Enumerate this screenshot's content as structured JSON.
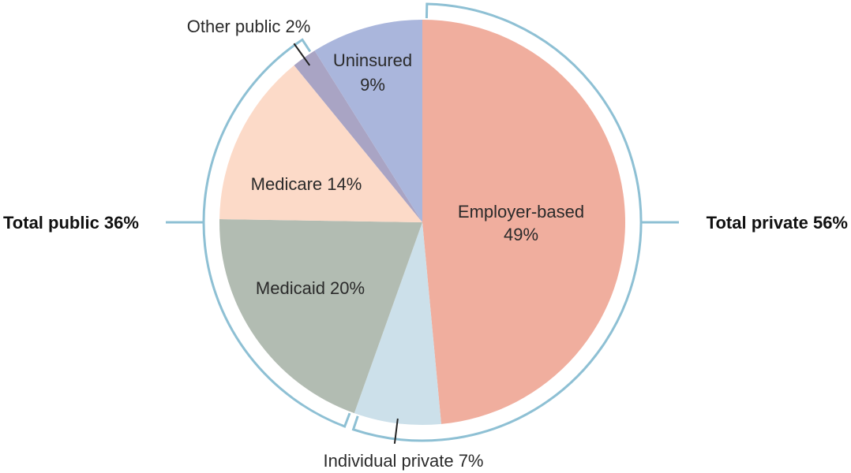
{
  "chart_data": {
    "type": "pie",
    "slices": [
      {
        "label": "Employer-based",
        "pct_text": "49%",
        "value": 49,
        "color": "#f0ae9e"
      },
      {
        "label": "Individual private 7%",
        "value": 7,
        "color": "#cce0ea"
      },
      {
        "label": "Medicaid 20%",
        "value": 20,
        "color": "#b2bcb2"
      },
      {
        "label": "Medicare 14%",
        "value": 14,
        "color": "#fcdac8"
      },
      {
        "label": "Other public 2%",
        "value": 2,
        "color": "#a9a4c4"
      },
      {
        "label": "Uninsured",
        "pct_text": "9%",
        "value": 9,
        "color": "#aab6dc"
      }
    ],
    "groups": [
      {
        "label": "Total private 56%",
        "value": 56
      },
      {
        "label": "Total public 36%",
        "value": 36
      }
    ],
    "bracket_color": "#8ec0d4"
  }
}
